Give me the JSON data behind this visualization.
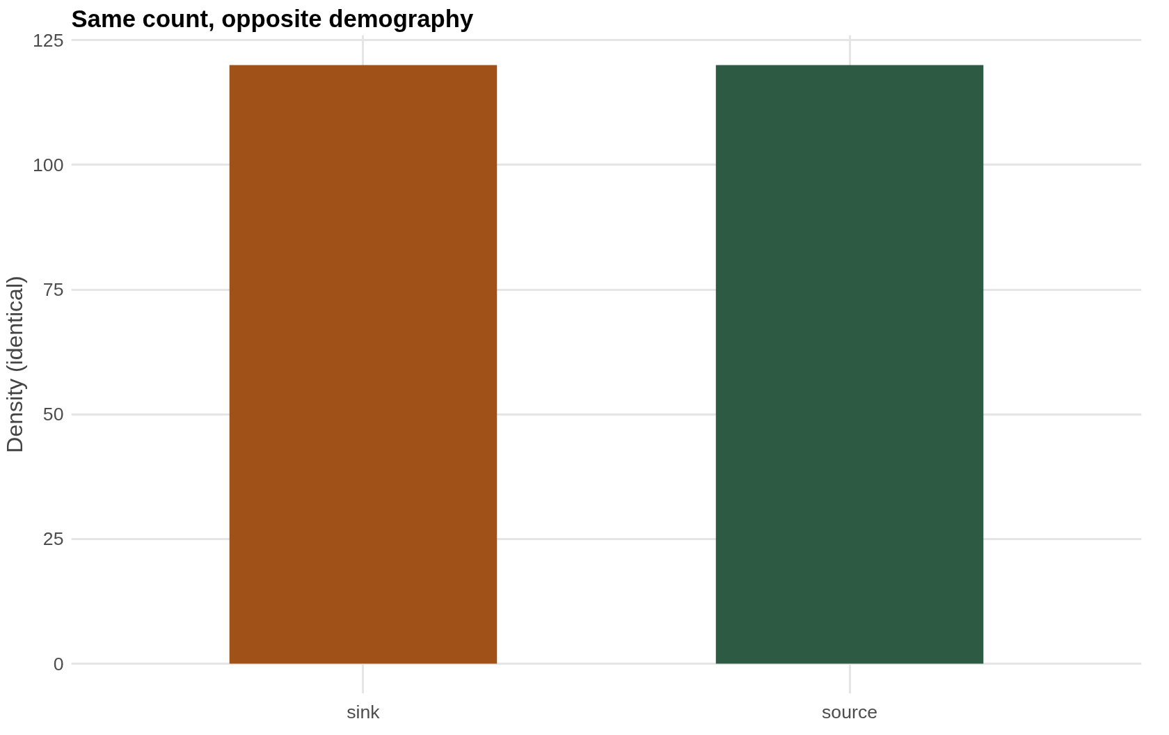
{
  "chart_data": {
    "type": "bar",
    "title": "Same count, opposite demography",
    "ylabel": "Density (identical)",
    "categories": [
      "sink",
      "source"
    ],
    "values": [
      120,
      120
    ],
    "colors": [
      "#a05118",
      "#2d5a42"
    ],
    "ylim": [
      -6,
      126
    ],
    "yticks": [
      0,
      25,
      50,
      75,
      100,
      125
    ],
    "grid": true
  }
}
